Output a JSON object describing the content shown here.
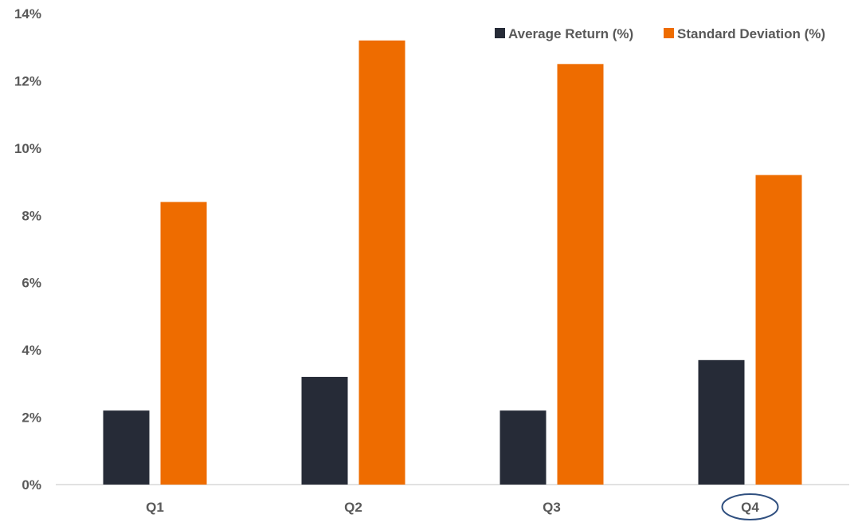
{
  "chart_data": {
    "type": "bar",
    "title": "",
    "xlabel": "",
    "ylabel": "",
    "categories": [
      "Q1",
      "Q2",
      "Q3",
      "Q4"
    ],
    "highlighted_category": "Q4",
    "ylim": [
      0,
      14
    ],
    "yticks": [
      0,
      2,
      4,
      6,
      8,
      10,
      12,
      14
    ],
    "ytick_suffix": "%",
    "grid": false,
    "legend_position": "top-right",
    "series": [
      {
        "name": "Average Return (%)",
        "values": [
          2.2,
          3.2,
          2.2,
          3.7
        ],
        "color": "#262B37"
      },
      {
        "name": "Standard Deviation (%)",
        "values": [
          8.4,
          13.2,
          12.5,
          9.2
        ],
        "color": "#EE6C00"
      }
    ],
    "colors": {
      "axis_line": "#D9D9D9",
      "tick_text": "#595959",
      "highlight_ellipse": "#2F4F7F"
    }
  }
}
